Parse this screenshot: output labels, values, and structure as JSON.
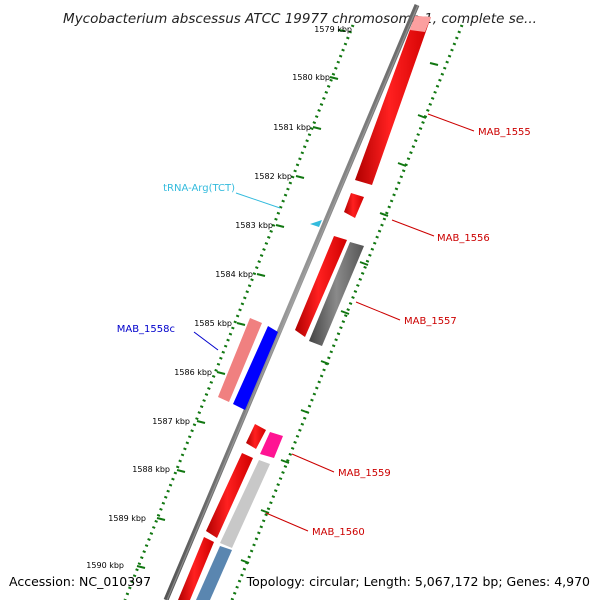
{
  "title": "Mycobacterium abscessus ATCC 19977 chromosome 1, complete se...",
  "footer": {
    "accession": "Accession: NC_010397",
    "topology": "Topology: circular; Length: 5,067,172 bp; Genes: 4,970"
  },
  "ticks": [
    "1579 kbp",
    "1580 kbp",
    "1581 kbp",
    "1582 kbp",
    "1583 kbp",
    "1584 kbp",
    "1585 kbp",
    "1586 kbp",
    "1587 kbp",
    "1588 kbp",
    "1589 kbp",
    "1590 kbp"
  ],
  "labels": {
    "trna": "tRNA-Arg(TCT)",
    "mab_1558c": "MAB_1558c",
    "mab_1555": "MAB_1555",
    "mab_1556": "MAB_1556",
    "mab_1557": "MAB_1557",
    "mab_1559": "MAB_1559",
    "mab_1560": "MAB_1560"
  },
  "colors": {
    "forward_gene": "#ff0000",
    "reverse_gene": "#0000ff",
    "trna": "#33bbdd",
    "backbone": "#888888",
    "tick_green": "#117711",
    "label_red": "#cc0000",
    "label_blue": "#0000cc"
  }
}
